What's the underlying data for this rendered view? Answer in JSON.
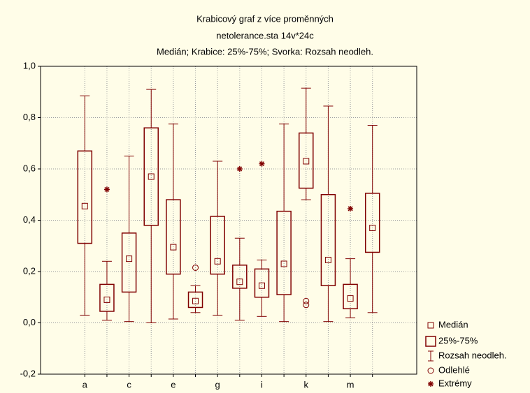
{
  "chart_data": {
    "type": "box",
    "title": "Krabicový graf z více proměnných",
    "subtitle": "netolerance.sta 14v*24c",
    "note": "Medián; Krabice: 25%-75%; Svorka: Rozsah neodleh.",
    "categories": [
      "a",
      null,
      "c",
      null,
      "e",
      null,
      "g",
      null,
      "i",
      null,
      "k",
      null,
      "m",
      null
    ],
    "color": "#800000",
    "stats": {
      "min": [
        0.03,
        0.01,
        0.005,
        0.0,
        0.015,
        0.04,
        0.03,
        0.01,
        0.025,
        0.005,
        0.48,
        0.005,
        0.02,
        0.04
      ],
      "q1": [
        0.31,
        0.045,
        0.12,
        0.38,
        0.19,
        0.06,
        0.19,
        0.135,
        0.1,
        0.11,
        0.525,
        0.145,
        0.055,
        0.275
      ],
      "median": [
        0.455,
        0.09,
        0.25,
        0.57,
        0.295,
        0.085,
        0.24,
        0.16,
        0.145,
        0.23,
        0.63,
        0.245,
        0.095,
        0.37
      ],
      "q3": [
        0.67,
        0.15,
        0.35,
        0.76,
        0.48,
        0.12,
        0.415,
        0.225,
        0.21,
        0.435,
        0.74,
        0.5,
        0.15,
        0.505
      ],
      "max": [
        0.885,
        0.24,
        0.65,
        0.91,
        0.775,
        0.145,
        0.63,
        0.33,
        0.245,
        0.775,
        0.915,
        0.845,
        0.25,
        0.77
      ]
    },
    "outliers": [
      [],
      [],
      [],
      [],
      [],
      [
        0.215
      ],
      [],
      [],
      [],
      [],
      [
        0.07,
        0.085
      ],
      [],
      [],
      []
    ],
    "extremes": [
      [],
      [
        0.52
      ],
      [],
      [],
      [],
      [],
      [],
      [
        0.6
      ],
      [
        0.62
      ],
      [],
      [],
      [],
      [
        0.445
      ],
      []
    ],
    "ylim": [
      -0.2,
      1.0
    ],
    "yticks": [
      {
        "value": -0.2,
        "label": "-0,2"
      },
      {
        "value": 0,
        "label": "0,0"
      },
      {
        "value": 0.2,
        "label": "0,2"
      },
      {
        "value": 0.4,
        "label": "0,4"
      },
      {
        "value": 0.6,
        "label": "0,6"
      },
      {
        "value": 0.8,
        "label": "0,8"
      },
      {
        "value": 1.0,
        "label": "1,0"
      }
    ],
    "grid": true,
    "legend": {
      "position": "lower right",
      "entries": [
        "Medián",
        "25%-75%",
        "Rozsah neodleh.",
        "Odlehlé",
        "Extrémy"
      ]
    }
  }
}
